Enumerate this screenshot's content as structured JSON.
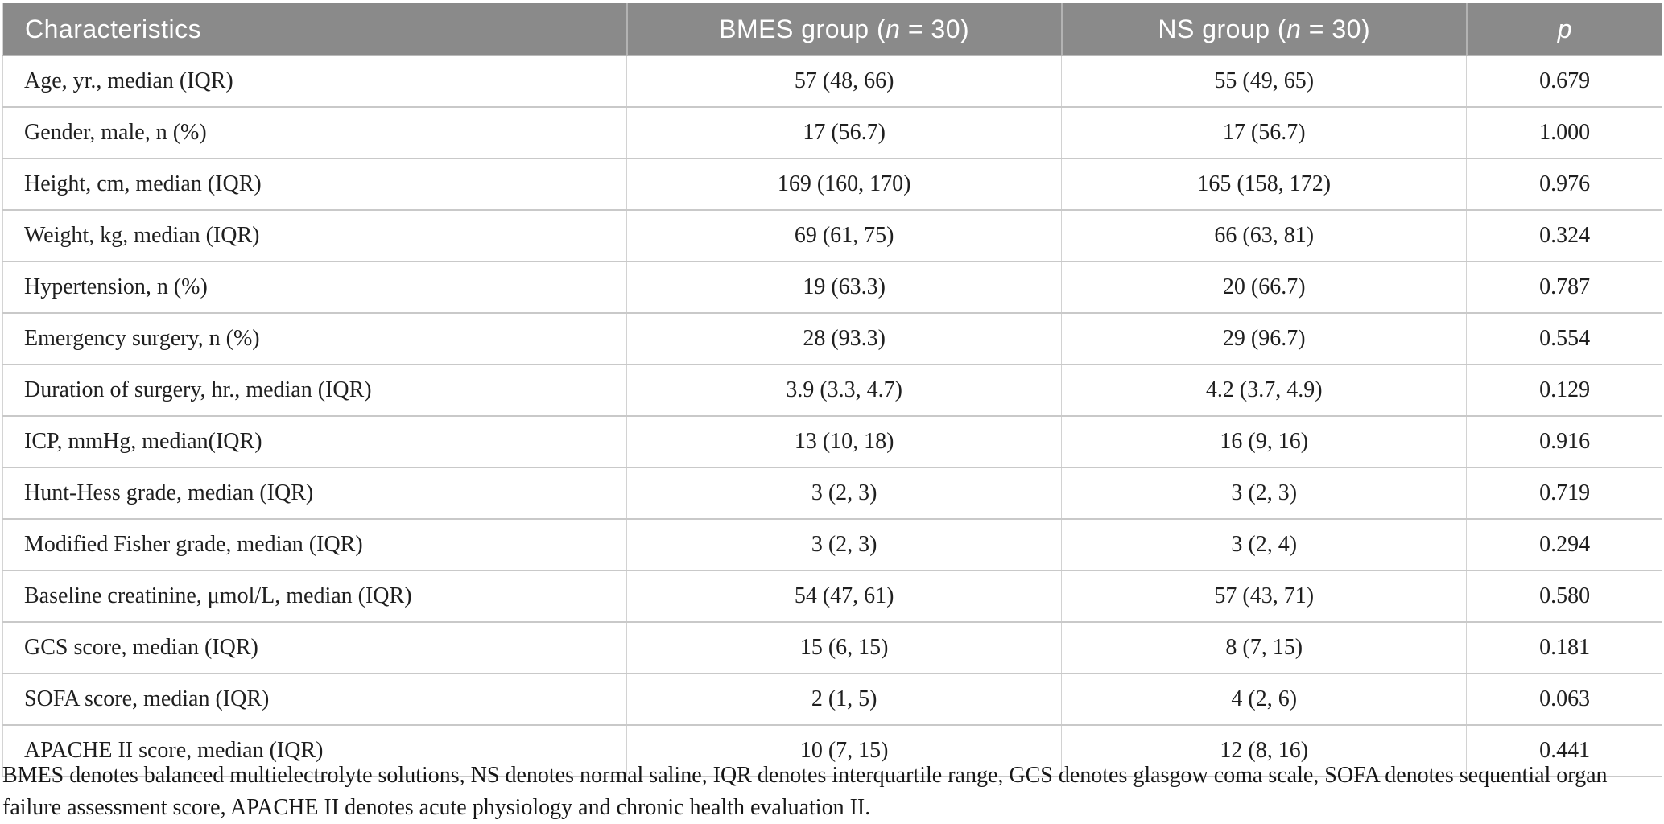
{
  "colors": {
    "header_bg": "#8a8a8a",
    "header_text": "#ffffff",
    "body_text": "#1f1f1f",
    "row_border": "#c9c9c9",
    "col_border": "#d2d2d2"
  },
  "table": {
    "header": [
      {
        "prefix": "Characteristics",
        "italic": "",
        "suffix": ""
      },
      {
        "prefix": "BMES group (",
        "italic": "n",
        "suffix": " = 30)"
      },
      {
        "prefix": "NS group (",
        "italic": "n",
        "suffix": " = 30)"
      },
      {
        "prefix": "",
        "italic": "p",
        "suffix": ""
      }
    ],
    "rows": [
      [
        "Age, yr., median (IQR)",
        "57 (48, 66)",
        "55 (49, 65)",
        "0.679"
      ],
      [
        "Gender, male, n (%)",
        "17 (56.7)",
        "17 (56.7)",
        "1.000"
      ],
      [
        "Height, cm, median (IQR)",
        "169 (160, 170)",
        "165 (158, 172)",
        "0.976"
      ],
      [
        "Weight, kg, median (IQR)",
        "69 (61, 75)",
        "66 (63, 81)",
        "0.324"
      ],
      [
        "Hypertension, n (%)",
        "19 (63.3)",
        "20 (66.7)",
        "0.787"
      ],
      [
        "Emergency surgery, n (%)",
        "28 (93.3)",
        "29 (96.7)",
        "0.554"
      ],
      [
        "Duration of surgery, hr., median (IQR)",
        "3.9 (3.3, 4.7)",
        "4.2 (3.7, 4.9)",
        "0.129"
      ],
      [
        "ICP, mmHg, median(IQR)",
        "13 (10, 18)",
        "16 (9, 16)",
        "0.916"
      ],
      [
        "Hunt-Hess grade, median (IQR)",
        "3 (2, 3)",
        "3 (2, 3)",
        "0.719"
      ],
      [
        "Modified Fisher grade, median (IQR)",
        "3 (2, 3)",
        "3 (2, 4)",
        "0.294"
      ],
      [
        "Baseline creatinine, μmol/L, median (IQR)",
        "54 (47, 61)",
        "57 (43, 71)",
        "0.580"
      ],
      [
        "GCS score, median (IQR)",
        "15 (6, 15)",
        "8 (7, 15)",
        "0.181"
      ],
      [
        "SOFA score, median (IQR)",
        "2 (1, 5)",
        "4 (2, 6)",
        "0.063"
      ],
      [
        "APACHE II score, median (IQR)",
        "10 (7, 15)",
        "12 (8, 16)",
        "0.441"
      ]
    ]
  },
  "footnote": "BMES denotes balanced multielectrolyte solutions, NS denotes normal saline, IQR denotes interquartile range, GCS denotes glasgow coma scale, SOFA denotes sequential organ failure assessment score, APACHE II denotes acute physiology and chronic health evaluation II."
}
